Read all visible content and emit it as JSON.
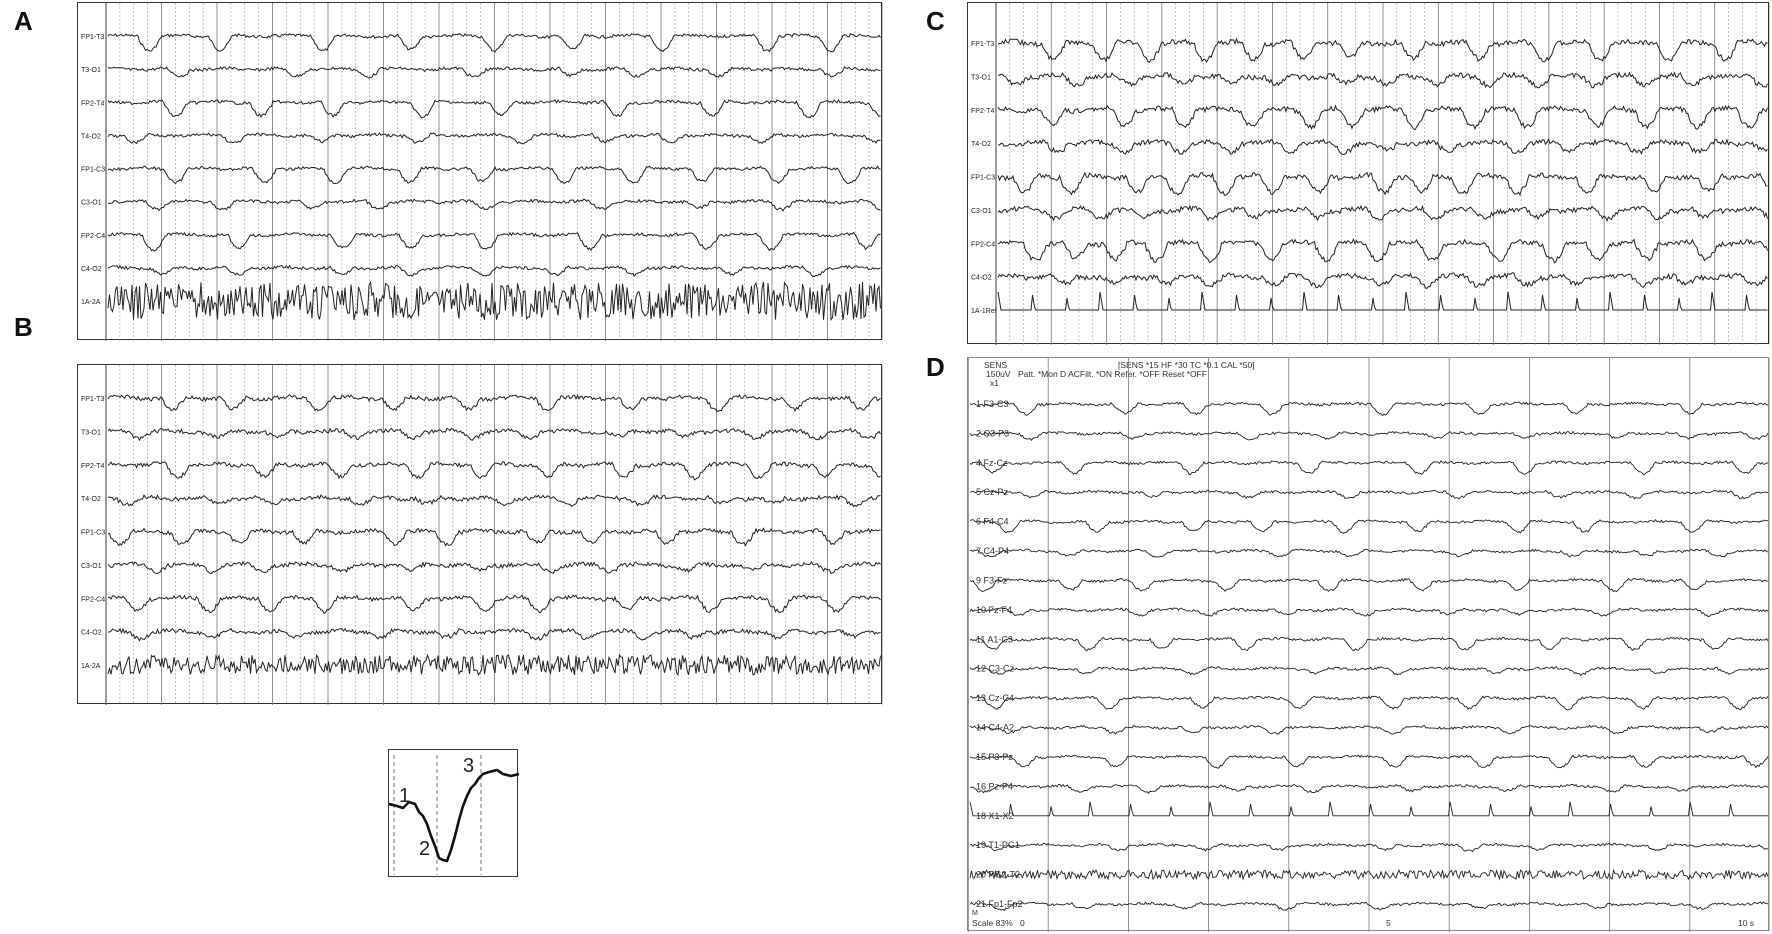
{
  "panels": [
    {
      "letter": "A",
      "channels": [
        "FP1-T3",
        "T3-O1",
        "FP2-T4",
        "T4-O2",
        "FP1-C3",
        "C3-O1",
        "FP2-C4",
        "C4-O2",
        "1A-2A"
      ]
    },
    {
      "letter": "B",
      "channels": [
        "FP1-T3",
        "T3-O1",
        "FP2-T4",
        "T4-O2",
        "FP1-C3",
        "C3-O1",
        "FP2-C4",
        "C4-O2",
        "1A-2A"
      ]
    },
    {
      "letter": "C",
      "channels": [
        "FP1-T3",
        "T3-O1",
        "FP2-T4",
        "T4-O2",
        "FP1-C3",
        "C3-O1",
        "FP2-C4",
        "C4-O2",
        "1A-1Ref"
      ]
    },
    {
      "letter": "D",
      "channels": [
        "1  F3-C3",
        "2  C3-P3",
        "4  Fz-Cz",
        "5  Cz-Pz",
        "6  F4-C4",
        "7  C4-P4",
        "9  F3-Fz",
        "10  Fz-F4",
        "11  A1-C3",
        "12  C3-Cz",
        "13  Cz-C4",
        "14  C4-A2",
        "15  P3-Pz",
        "16  Pz-P4",
        "18  X1-X2",
        "19  T1-PG1",
        "20  PG2-T2",
        "21  Fp1-Fp2"
      ]
    }
  ],
  "panel_d_header": {
    "sens": "SENS",
    "sens_value": "150uV",
    "x1": "x1",
    "settings_line": "[SENS *15  HF *30  TC *0.1  CAL *50]",
    "patt_line": "Patt. *Mon D  ACFilt. *ON  Refer. *OFF  Reset *OFF"
  },
  "panel_d_footer": {
    "scale": "Scale 83%",
    "tick_0": "0",
    "tick_5": "5",
    "tick_10": "10 s",
    "note": "M"
  },
  "inset": {
    "labels": [
      "1",
      "2",
      "3"
    ]
  }
}
